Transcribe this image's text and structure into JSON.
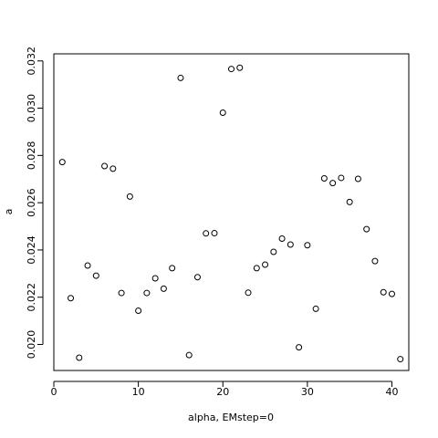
{
  "chart_data": {
    "type": "scatter",
    "title": "",
    "xlabel": "alpha, EMstep=0",
    "ylabel": "a",
    "xlim": [
      0,
      42
    ],
    "ylim": [
      0.0189,
      0.0323
    ],
    "grid": false,
    "marker": "open-circle",
    "x_ticks": [
      0,
      10,
      20,
      30,
      40
    ],
    "x_tick_labels": [
      "0",
      "10",
      "20",
      "30",
      "40"
    ],
    "y_ticks": [
      0.02,
      0.022,
      0.024,
      0.026,
      0.028,
      0.03,
      0.032
    ],
    "y_tick_labels": [
      "0.020",
      "0.022",
      "0.024",
      "0.026",
      "0.028",
      "0.030",
      "0.032"
    ],
    "x": [
      1,
      2,
      3,
      4,
      5,
      6,
      7,
      8,
      9,
      10,
      11,
      12,
      13,
      14,
      15,
      16,
      17,
      18,
      19,
      20,
      21,
      22,
      23,
      24,
      25,
      26,
      27,
      28,
      29,
      30,
      31,
      32,
      33,
      34,
      35,
      36,
      37,
      38,
      39,
      40,
      41
    ],
    "y": [
      0.02772,
      0.02196,
      0.01944,
      0.02334,
      0.02291,
      0.02755,
      0.02744,
      0.02218,
      0.02626,
      0.02143,
      0.02218,
      0.0228,
      0.02236,
      0.02323,
      0.03128,
      0.01955,
      0.02285,
      0.0247,
      0.02471,
      0.02981,
      0.03166,
      0.03171,
      0.02219,
      0.02323,
      0.02338,
      0.02392,
      0.02448,
      0.02423,
      0.01988,
      0.0242,
      0.02151,
      0.02703,
      0.02683,
      0.02705,
      0.02603,
      0.02701,
      0.02488,
      0.02353,
      0.02221,
      0.02214,
      0.01938
    ]
  }
}
